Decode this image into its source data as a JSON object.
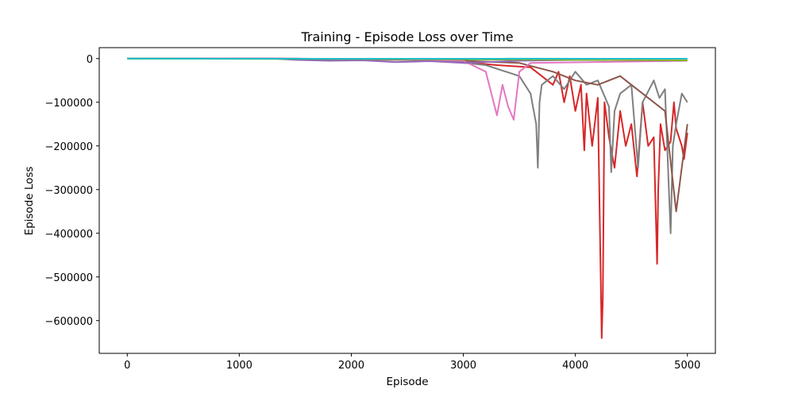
{
  "chart_data": {
    "type": "line",
    "title": "Training - Episode Loss over Time",
    "xlabel": "Episode",
    "ylabel": "Episode Loss",
    "xlim": [
      -250,
      5250
    ],
    "ylim": [
      -675000,
      25000
    ],
    "xticks": [
      0,
      1000,
      2000,
      3000,
      4000,
      5000
    ],
    "yticks": [
      0,
      -100000,
      -200000,
      -300000,
      -400000,
      -500000,
      -600000
    ],
    "xtick_labels": [
      "0",
      "1000",
      "2000",
      "3000",
      "4000",
      "5000"
    ],
    "ytick_labels": [
      "0",
      "−100000",
      "−200000",
      "−300000",
      "−400000",
      "−500000",
      "−600000"
    ],
    "grid": false,
    "legend": "none",
    "series": [
      {
        "color": "#d62728",
        "x": [
          0,
          1300,
          1800,
          2500,
          3000,
          3300,
          3600,
          3800,
          3850,
          3900,
          3950,
          4000,
          4050,
          4080,
          4100,
          4150,
          4200,
          4235,
          4245,
          4260,
          4300,
          4350,
          4400,
          4450,
          4500,
          4550,
          4600,
          4650,
          4700,
          4730,
          4740,
          4760,
          4800,
          4850,
          4880,
          4900,
          4950,
          4970,
          5000
        ],
        "y": [
          0,
          0,
          -1500,
          -3000,
          -8000,
          -15000,
          -20000,
          -60000,
          -30000,
          -100000,
          -40000,
          -120000,
          -60000,
          -210000,
          -80000,
          -200000,
          -90000,
          -640000,
          -550000,
          -100000,
          -180000,
          -250000,
          -120000,
          -200000,
          -150000,
          -270000,
          -100000,
          -200000,
          -180000,
          -470000,
          -300000,
          -150000,
          -210000,
          -190000,
          -100000,
          -160000,
          -200000,
          -230000,
          -170000
        ]
      },
      {
        "color": "#7f7f7f",
        "x": [
          0,
          1300,
          2000,
          2800,
          3200,
          3500,
          3600,
          3650,
          3665,
          3680,
          3700,
          3800,
          3900,
          4000,
          4100,
          4200,
          4300,
          4320,
          4350,
          4400,
          4500,
          4560,
          4600,
          4700,
          4750,
          4800,
          4850,
          4870,
          4900,
          4950,
          5000
        ],
        "y": [
          0,
          0,
          -2000,
          -4000,
          -15000,
          -40000,
          -80000,
          -150000,
          -250000,
          -100000,
          -60000,
          -40000,
          -70000,
          -30000,
          -60000,
          -50000,
          -110000,
          -260000,
          -120000,
          -80000,
          -60000,
          -250000,
          -100000,
          -50000,
          -90000,
          -70000,
          -400000,
          -200000,
          -150000,
          -80000,
          -100000
        ]
      },
      {
        "color": "#8c564b",
        "x": [
          0,
          1500,
          2800,
          3500,
          3800,
          4000,
          4200,
          4400,
          4600,
          4800,
          4900,
          5000
        ],
        "y": [
          0,
          0,
          -3000,
          -10000,
          -30000,
          -50000,
          -60000,
          -40000,
          -80000,
          -120000,
          -350000,
          -150000
        ]
      },
      {
        "color": "#e377c2",
        "x": [
          0,
          1400,
          2500,
          3000,
          3200,
          3300,
          3350,
          3400,
          3450,
          3500,
          3600,
          5000
        ],
        "y": [
          0,
          0,
          -2000,
          -5000,
          -30000,
          -130000,
          -60000,
          -110000,
          -140000,
          -30000,
          -10000,
          -5000
        ]
      },
      {
        "color": "#9467bd",
        "x": [
          0,
          1300,
          1500,
          1800,
          2100,
          2400,
          2700,
          3000,
          3500,
          4000,
          5000
        ],
        "y": [
          0,
          0,
          -3000,
          -5000,
          -4000,
          -8000,
          -6000,
          -10000,
          -5000,
          -3000,
          -2000
        ]
      },
      {
        "color": "#2ca02c",
        "x": [
          0,
          2000,
          3000,
          4000,
          5000
        ],
        "y": [
          0,
          -1000,
          -2000,
          -3000,
          -4000
        ]
      },
      {
        "color": "#bcbd22",
        "x": [
          0,
          3000,
          4000,
          5000
        ],
        "y": [
          0,
          -1000,
          -2000,
          -3000
        ]
      },
      {
        "color": "#17becf",
        "x": [
          0,
          5000
        ],
        "y": [
          0,
          -500
        ]
      }
    ]
  }
}
